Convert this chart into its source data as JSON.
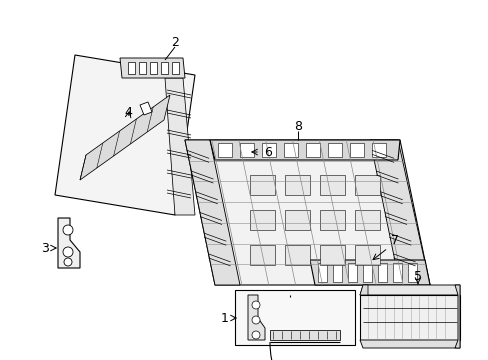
{
  "bg_color": "#ffffff",
  "line_color": "#000000",
  "lw": 0.8,
  "fig_width": 4.89,
  "fig_height": 3.6,
  "dpi": 100,
  "label_fontsize": 9
}
